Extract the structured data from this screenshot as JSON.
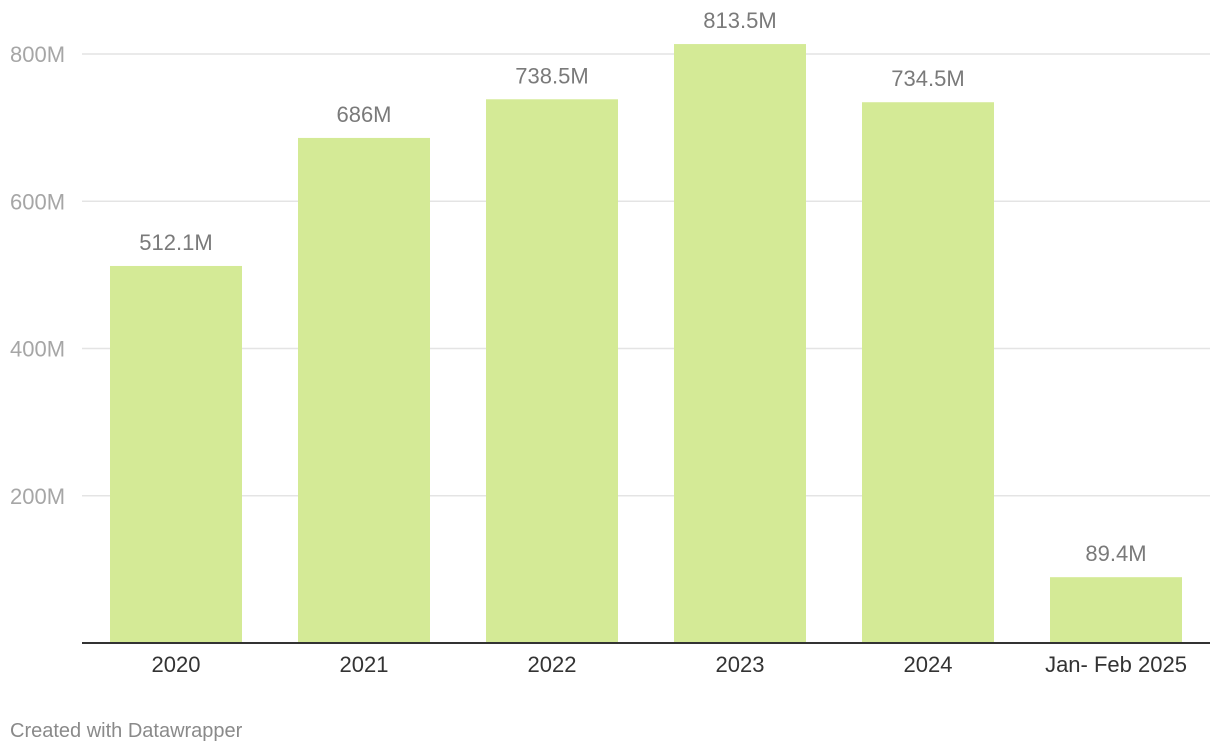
{
  "chart_data": {
    "type": "bar",
    "title": "",
    "xlabel": "",
    "ylabel": "",
    "categories": [
      "2020",
      "2021",
      "2022",
      "2023",
      "2024",
      "Jan- Feb 2025"
    ],
    "values": [
      512.1,
      686,
      738.5,
      813.5,
      734.5,
      89.4
    ],
    "value_labels": [
      "512.1M",
      "686M",
      "738.5M",
      "813.5M",
      "734.5M",
      "89.4M"
    ],
    "ylim": [
      0,
      800
    ],
    "y_ticks": [
      200,
      400,
      600,
      800
    ],
    "y_tick_labels": [
      "200M",
      "400M",
      "600M",
      "800M"
    ],
    "unit": "M",
    "bar_color": "#d4ea96",
    "grid": true,
    "legend": "none"
  },
  "footer": {
    "credit": "Created with Datawrapper"
  }
}
